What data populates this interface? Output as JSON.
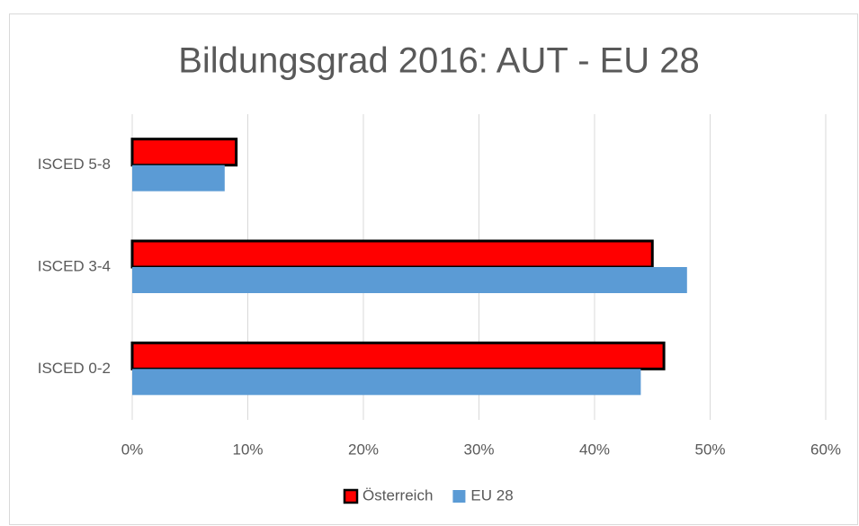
{
  "chart_data": {
    "type": "hbar",
    "title": "Bildungsgrad 2016: AUT - EU 28",
    "categories": [
      "ISCED 0-2",
      "ISCED 3-4",
      "ISCED 5-8"
    ],
    "series": [
      {
        "name": "Österreich",
        "color": "#ff0000",
        "values": [
          46,
          45,
          9
        ]
      },
      {
        "name": "EU 28",
        "color": "#5b9bd5",
        "values": [
          44,
          48,
          8
        ]
      }
    ],
    "xlim": [
      0,
      60
    ],
    "xticks": [
      {
        "value": 0,
        "label": "0%"
      },
      {
        "value": 10,
        "label": "10%"
      },
      {
        "value": 20,
        "label": "20%"
      },
      {
        "value": 30,
        "label": "30%"
      },
      {
        "value": 40,
        "label": "40%"
      },
      {
        "value": 50,
        "label": "50%"
      },
      {
        "value": 60,
        "label": "60%"
      }
    ],
    "grid": true,
    "legend": "bottom"
  }
}
